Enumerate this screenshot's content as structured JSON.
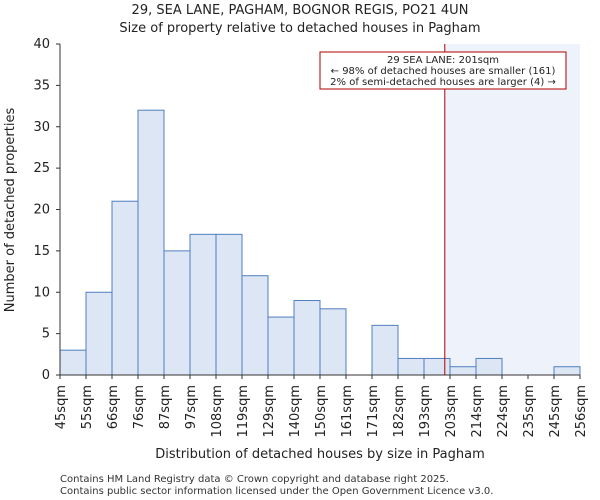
{
  "chart_data": {
    "type": "bar",
    "title_line1": "29, SEA LANE, PAGHAM, BOGNOR REGIS, PO21 4UN",
    "title_line2": "Size of property relative to detached houses in Pagham",
    "xlabel": "Distribution of detached houses by size in Pagham",
    "ylabel": "Number of detached properties",
    "ylim": [
      0,
      40
    ],
    "yticks": [
      0,
      5,
      10,
      15,
      20,
      25,
      30,
      35,
      40
    ],
    "bin_labels": [
      "45sqm",
      "55sqm",
      "66sqm",
      "76sqm",
      "87sqm",
      "97sqm",
      "108sqm",
      "119sqm",
      "129sqm",
      "140sqm",
      "150sqm",
      "161sqm",
      "171sqm",
      "182sqm",
      "193sqm",
      "203sqm",
      "214sqm",
      "224sqm",
      "235sqm",
      "245sqm",
      "256sqm"
    ],
    "values": [
      3,
      10,
      21,
      32,
      15,
      17,
      17,
      12,
      7,
      9,
      8,
      0,
      6,
      2,
      2,
      1,
      2,
      0,
      0,
      1
    ],
    "marker": {
      "value_sqm": 201,
      "label_line1": "29 SEA LANE: 201sqm",
      "label_line2": "← 98% of detached houses are smaller (161)",
      "label_line3": "2% of semi-detached houses are larger (4) →"
    },
    "colors": {
      "bar_fill": "#dce6f4",
      "bar_stroke": "#4f7fc0",
      "marker_line": "#b00000",
      "highlight_fill": "#eef2fb",
      "annot_border": "#b00000"
    }
  },
  "footer": {
    "line1": "Contains HM Land Registry data © Crown copyright and database right 2025.",
    "line2": "Contains public sector information licensed under the Open Government Licence v3.0."
  }
}
